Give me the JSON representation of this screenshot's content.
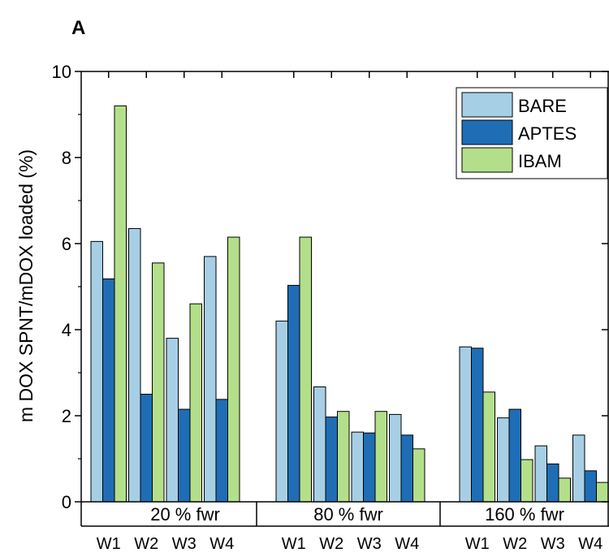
{
  "panel_label": "A",
  "chart_data": {
    "type": "bar",
    "ylabel": "m DOX SPNT/mDOX loaded (%)",
    "ylim": [
      0,
      10
    ],
    "yticks": [
      0,
      2,
      4,
      6,
      8,
      10
    ],
    "grid": false,
    "legend_position": "top-right",
    "groups": [
      {
        "label": "20 % fwr",
        "categories": [
          "W1",
          "W2",
          "W3",
          "W4"
        ]
      },
      {
        "label": "80 % fwr",
        "categories": [
          "W1",
          "W2",
          "W3",
          "W4"
        ]
      },
      {
        "label": "160 % fwr",
        "categories": [
          "W1",
          "W2",
          "W3",
          "W4"
        ]
      }
    ],
    "series": [
      {
        "name": "BARE",
        "color": "#a6cfe5",
        "values": [
          6.05,
          6.35,
          3.8,
          5.7,
          4.2,
          2.67,
          1.62,
          2.03,
          3.6,
          1.95,
          1.3,
          1.55
        ]
      },
      {
        "name": "APTES",
        "color": "#1f6db5",
        "values": [
          5.18,
          2.5,
          2.15,
          2.38,
          5.03,
          1.97,
          1.6,
          1.55,
          3.57,
          2.15,
          0.88,
          0.72
        ]
      },
      {
        "name": "IBAM",
        "color": "#b3df8a",
        "values": [
          9.2,
          5.55,
          4.6,
          6.15,
          6.15,
          2.1,
          2.1,
          1.23,
          2.55,
          0.98,
          0.55,
          0.45
        ]
      }
    ]
  }
}
